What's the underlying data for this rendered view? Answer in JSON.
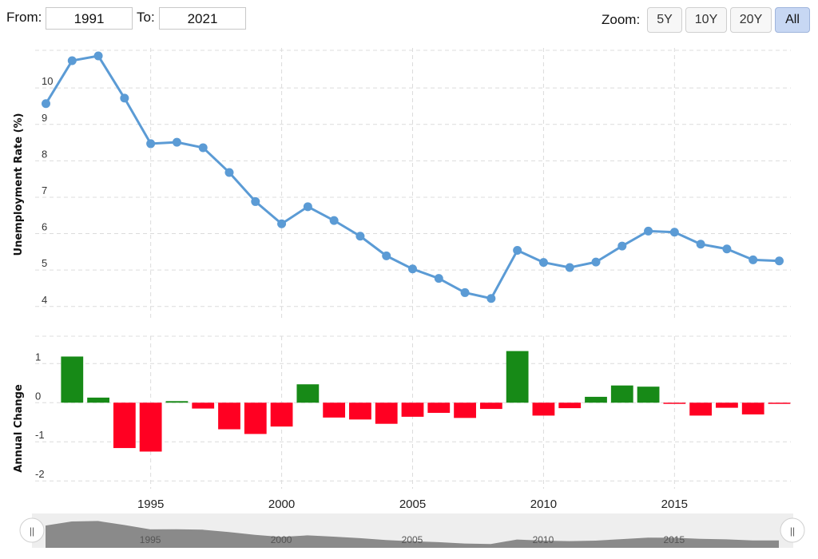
{
  "range": {
    "from_label": "From:",
    "from_value": "1991",
    "to_label": "To:",
    "to_value": "2021"
  },
  "zoom": {
    "label": "Zoom:",
    "buttons": [
      "5Y",
      "10Y",
      "20Y",
      "All"
    ],
    "active": "All"
  },
  "colors": {
    "line": "#5b9bd5",
    "positive": "#178a17",
    "negative": "#ff0022",
    "grid": "#dcdcdc",
    "navigator": "#8a8a8a"
  },
  "chart_data": [
    {
      "type": "line",
      "ylabel": "Unemployment Rate (%)",
      "ylim": [
        3.6,
        11.1
      ],
      "yticks": [
        4,
        5,
        6,
        7,
        8,
        9,
        10
      ],
      "x": [
        1991,
        1992,
        1993,
        1994,
        1995,
        1996,
        1997,
        1998,
        1999,
        2000,
        2001,
        2002,
        2003,
        2004,
        2005,
        2006,
        2007,
        2008,
        2009,
        2010,
        2011,
        2012,
        2013,
        2014,
        2015,
        2016,
        2017,
        2018,
        2019
      ],
      "values": [
        9.57,
        10.75,
        10.88,
        9.72,
        8.47,
        8.51,
        8.36,
        7.68,
        6.88,
        6.27,
        6.74,
        6.36,
        5.93,
        5.39,
        5.03,
        4.77,
        4.38,
        4.22,
        5.54,
        5.21,
        5.07,
        5.22,
        5.66,
        6.07,
        6.04,
        5.71,
        5.58,
        5.28,
        5.25
      ],
      "grid": true
    },
    {
      "type": "bar",
      "ylabel": "Annual Change",
      "ylim": [
        -2.2,
        1.7
      ],
      "yticks": [
        -2,
        -1,
        0,
        1
      ],
      "x": [
        1992,
        1993,
        1994,
        1995,
        1996,
        1997,
        1998,
        1999,
        2000,
        2001,
        2002,
        2003,
        2004,
        2005,
        2006,
        2007,
        2008,
        2009,
        2010,
        2011,
        2012,
        2013,
        2014,
        2015,
        2016,
        2017,
        2018,
        2019
      ],
      "values": [
        1.18,
        0.13,
        -1.16,
        -1.25,
        0.04,
        -0.15,
        -0.68,
        -0.8,
        -0.61,
        0.47,
        -0.38,
        -0.43,
        -0.54,
        -0.36,
        -0.26,
        -0.39,
        -0.16,
        1.32,
        -0.33,
        -0.14,
        0.15,
        0.44,
        0.41,
        -0.03,
        -0.33,
        -0.13,
        -0.3,
        -0.03
      ],
      "grid": true
    }
  ],
  "xaxis": {
    "ticks": [
      1995,
      2000,
      2005,
      2010,
      2015
    ]
  },
  "navigator": {
    "ticks": [
      1995,
      2000,
      2005,
      2010,
      2015
    ],
    "left_handle": "||",
    "right_handle": "||"
  }
}
